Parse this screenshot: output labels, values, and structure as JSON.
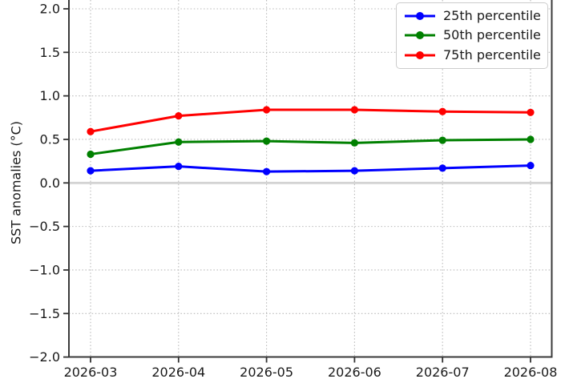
{
  "chart_data": {
    "type": "line",
    "x": [
      "2026-03",
      "2026-04",
      "2026-05",
      "2026-06",
      "2026-07",
      "2026-08"
    ],
    "series": [
      {
        "name": "25th percentile",
        "color": "#0000ff",
        "values": [
          0.14,
          0.19,
          0.13,
          0.14,
          0.17,
          0.2
        ]
      },
      {
        "name": "50th percentile",
        "color": "#008000",
        "values": [
          0.33,
          0.47,
          0.48,
          0.46,
          0.49,
          0.5
        ]
      },
      {
        "name": "75th percentile",
        "color": "#ff0000",
        "values": [
          0.59,
          0.77,
          0.84,
          0.84,
          0.82,
          0.81
        ]
      }
    ],
    "title": "",
    "xlabel": "",
    "ylabel": "SST anomalies (°C)",
    "ylim": [
      -2.0,
      2.0
    ],
    "yticks": [
      2.0,
      1.5,
      1.0,
      0.5,
      0.0,
      -0.5,
      -1.0,
      -1.5,
      -2.0
    ],
    "ytick_labels": [
      "2.0",
      "1.5",
      "1.0",
      "0.5",
      "0.0",
      "−0.5",
      "−1.0",
      "−1.5",
      "−2.0"
    ],
    "xtick_labels": [
      "2026-03",
      "2026-04",
      "2026-05",
      "2026-06",
      "2026-07",
      "2026-08"
    ],
    "grid": true,
    "grid_style": "dotted",
    "legend_position": "upper right",
    "zero_line": true,
    "colors": {
      "grid": "#b9b9b9",
      "zero_line": "#d3d3d3",
      "spine": "#3a3a3a",
      "tick": "#333333",
      "text": "#1a1a1a",
      "legend_border": "#cccccc"
    }
  }
}
